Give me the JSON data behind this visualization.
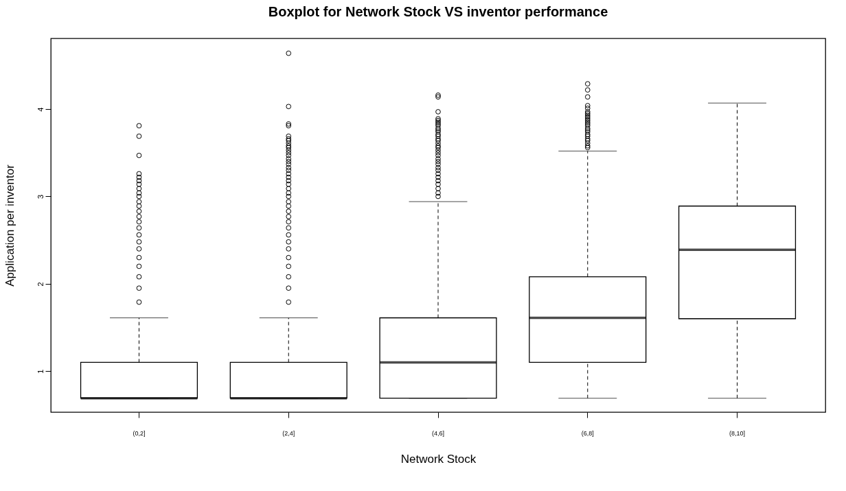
{
  "chart_data": {
    "type": "box",
    "title": "Boxplot for Network Stock VS inventor performance",
    "xlabel": "Network Stock",
    "ylabel": "Application per inventor",
    "categories": [
      "(0,2]",
      "(2,4]",
      "(4,6]",
      "(6,8]",
      "(8,10]"
    ],
    "boxes": [
      {
        "low": 0.69,
        "q1": 0.69,
        "median": 0.69,
        "q3": 1.1,
        "high": 1.61,
        "outliers": [
          1.79,
          1.95,
          2.08,
          2.2,
          2.3,
          2.4,
          2.48,
          2.56,
          2.64,
          2.71,
          2.77,
          2.83,
          2.89,
          2.94,
          3.0,
          3.04,
          3.09,
          3.14,
          3.18,
          3.22,
          3.26,
          3.47,
          3.69,
          3.81
        ]
      },
      {
        "low": 0.69,
        "q1": 0.69,
        "median": 0.69,
        "q3": 1.1,
        "high": 1.61,
        "outliers": [
          1.79,
          1.95,
          2.08,
          2.2,
          2.3,
          2.4,
          2.48,
          2.56,
          2.64,
          2.71,
          2.77,
          2.83,
          2.89,
          2.94,
          3.0,
          3.04,
          3.09,
          3.14,
          3.18,
          3.22,
          3.26,
          3.3,
          3.33,
          3.37,
          3.4,
          3.43,
          3.47,
          3.5,
          3.53,
          3.56,
          3.58,
          3.61,
          3.64,
          3.66,
          3.69,
          3.81,
          3.83,
          4.03,
          4.64
        ]
      },
      {
        "low": 0.69,
        "q1": 0.69,
        "median": 1.1,
        "q3": 1.61,
        "high": 2.94,
        "outliers": [
          3.0,
          3.04,
          3.09,
          3.14,
          3.18,
          3.22,
          3.26,
          3.3,
          3.33,
          3.37,
          3.4,
          3.43,
          3.47,
          3.5,
          3.53,
          3.56,
          3.58,
          3.61,
          3.64,
          3.66,
          3.69,
          3.71,
          3.74,
          3.76,
          3.78,
          3.81,
          3.83,
          3.85,
          3.87,
          3.89,
          3.97,
          4.14,
          4.16
        ]
      },
      {
        "low": 0.69,
        "q1": 1.1,
        "median": 1.61,
        "q3": 2.08,
        "high": 3.52,
        "outliers": [
          3.56,
          3.58,
          3.61,
          3.64,
          3.66,
          3.69,
          3.71,
          3.74,
          3.76,
          3.78,
          3.81,
          3.83,
          3.85,
          3.87,
          3.89,
          3.91,
          3.93,
          3.95,
          3.97,
          4.01,
          4.04,
          4.14,
          4.22,
          4.29
        ]
      },
      {
        "low": 0.69,
        "q1": 1.6,
        "median": 2.39,
        "q3": 2.89,
        "high": 4.07
      }
    ],
    "ylim": [
      0.53,
      4.81
    ],
    "yticks": [
      1,
      2,
      3,
      4
    ],
    "grid": false
  }
}
